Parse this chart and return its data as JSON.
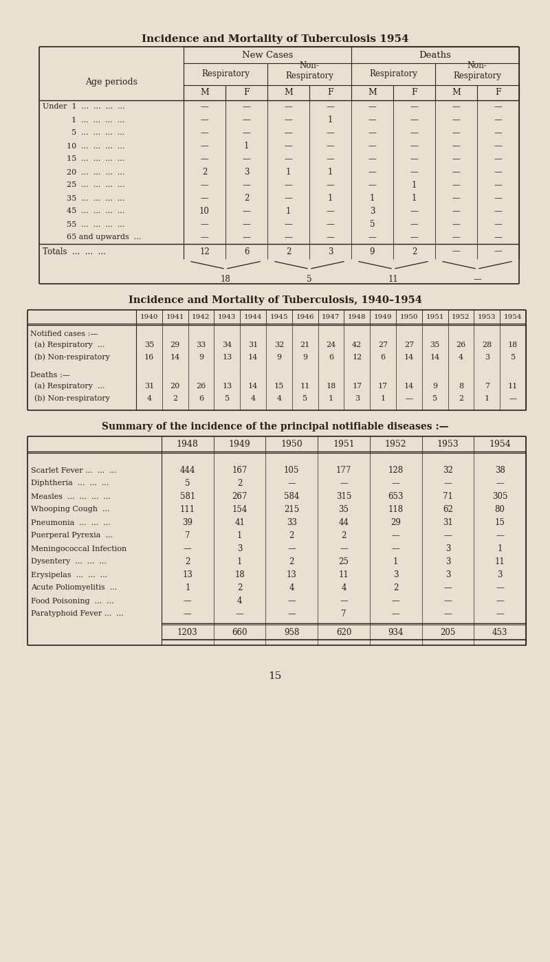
{
  "bg_color": "#e8e0d0",
  "text_color": "#2a1f1a",
  "title1": "Incidence and Mortality of Tuberculosis 1954",
  "title2": "Incidence and Mortality of Tuberculosis, 1940–1954",
  "title3": "Summary of the incidence of the principal notifiable diseases :—",
  "page_number": "15",
  "table1": {
    "rows": [
      [
        "Under  1  ...  ...  ...  ...",
        "—",
        "—",
        "—",
        "—",
        "—",
        "—",
        "—",
        "—"
      ],
      [
        "            1  ...  ...  ...  ...",
        "—",
        "—",
        "—",
        "1",
        "—",
        "—",
        "—",
        "—"
      ],
      [
        "            5  ...  ...  ...  ...",
        "—",
        "—",
        "—",
        "—",
        "—",
        "—",
        "—",
        "—"
      ],
      [
        "          10  ...  ...  ...  ...",
        "—",
        "1",
        "—",
        "—",
        "—",
        "—",
        "—",
        "—"
      ],
      [
        "          15  ...  ...  ...  ...",
        "—",
        "—",
        "—",
        "—",
        "—",
        "—",
        "—",
        "—"
      ],
      [
        "          20  ...  ...  ...  ...",
        "2",
        "3",
        "1",
        "1",
        "—",
        "—",
        "—",
        "—"
      ],
      [
        "          25  ...  ...  ...  ...",
        "—",
        "—",
        "—",
        "—",
        "—",
        "1",
        "—",
        "—"
      ],
      [
        "          35  ...  ...  ...  ...",
        "—",
        "2",
        "—",
        "1",
        "1",
        "1",
        "—",
        "—"
      ],
      [
        "          45  ...  ...  ...  ...",
        "10",
        "—",
        "1",
        "—",
        "3",
        "—",
        "—",
        "—"
      ],
      [
        "          55  ...  ...  ...  ...",
        "—",
        "—",
        "—",
        "—",
        "5",
        "—",
        "—",
        "—"
      ],
      [
        "          65 and upwards  ...",
        "—",
        "—",
        "—",
        "—",
        "—",
        "—",
        "—",
        "—"
      ]
    ],
    "totals_row": [
      "Totals  ...  ...  ...",
      "12",
      "6",
      "2",
      "3",
      "9",
      "2",
      "—",
      "—"
    ],
    "subtotals": [
      "18",
      "5",
      "11",
      "—"
    ]
  },
  "table2": {
    "years": [
      "1940",
      "1941",
      "1942",
      "1943",
      "1944",
      "1945",
      "1946",
      "1947",
      "1948",
      "1949",
      "1950",
      "1951",
      "1952",
      "1953",
      "1954"
    ],
    "section1_label": "Notified cases :—",
    "row_a_resp_label": "(a) Respiratory  ...",
    "row_a_resp": [
      "35",
      "29",
      "33",
      "34",
      "31",
      "32",
      "21",
      "24",
      "42",
      "27",
      "27",
      "35",
      "26",
      "28",
      "18"
    ],
    "row_b_nonresp_label": "(b) Non-respiratory",
    "row_b_nonresp": [
      "16",
      "14",
      "9",
      "13",
      "14",
      "9",
      "9",
      "6",
      "12",
      "6",
      "14",
      "14",
      "4",
      "3",
      "5"
    ],
    "section2_label": "Deaths :—",
    "row_c_resp_label": "(a) Respiratory  ...",
    "row_c_resp": [
      "31",
      "20",
      "26",
      "13",
      "14",
      "15",
      "11",
      "18",
      "17",
      "17",
      "14",
      "9",
      "8",
      "7",
      "11"
    ],
    "row_d_nonresp_label": "(b) Non-respiratory",
    "row_d_nonresp": [
      "4",
      "2",
      "6",
      "5",
      "4",
      "4",
      "5",
      "1",
      "3",
      "1",
      "—",
      "5",
      "2",
      "1",
      "—"
    ]
  },
  "table3": {
    "years": [
      "1948",
      "1949",
      "1950",
      "1951",
      "1952",
      "1953",
      "1954"
    ],
    "diseases": [
      "Scarlet Fever ...  ...  ...",
      "Diphtheria  ...  ...  ...",
      "Measles  ...  ...  ...  ...",
      "Whooping Cough  ...",
      "Pneumonia  ...  ...  ...",
      "Puerperal Pyrexia  ...",
      "Meningococcal Infection",
      "Dysentery  ...  ...  ...",
      "Erysipelas  ...  ...  ...",
      "Acute Poliomyelitis  ...",
      "Food Poisoning  ...  ...",
      "Paratyphoid Fever ...  ..."
    ],
    "data": [
      [
        "444",
        "167",
        "105",
        "177",
        "128",
        "32",
        "38"
      ],
      [
        "5",
        "2",
        "—",
        "—",
        "—",
        "—",
        "—"
      ],
      [
        "581",
        "267",
        "584",
        "315",
        "653",
        "71",
        "305"
      ],
      [
        "111",
        "154",
        "215",
        "35",
        "118",
        "62",
        "80"
      ],
      [
        "39",
        "41",
        "33",
        "44",
        "29",
        "31",
        "15"
      ],
      [
        "7",
        "1",
        "2",
        "2",
        "—",
        "—",
        "—"
      ],
      [
        "—",
        "3",
        "—",
        "—",
        "—",
        "3",
        "1"
      ],
      [
        "2",
        "1",
        "2",
        "25",
        "1",
        "3",
        "11"
      ],
      [
        "13",
        "18",
        "13",
        "11",
        "3",
        "3",
        "3"
      ],
      [
        "1",
        "2",
        "4",
        "4",
        "2",
        "—",
        "—"
      ],
      [
        "—",
        "4",
        "—",
        "—",
        "—",
        "—",
        "—"
      ],
      [
        "—",
        "—",
        "—",
        "7",
        "—",
        "—",
        "—"
      ]
    ],
    "totals": [
      "1203",
      "660",
      "958",
      "620",
      "934",
      "205",
      "453"
    ]
  }
}
